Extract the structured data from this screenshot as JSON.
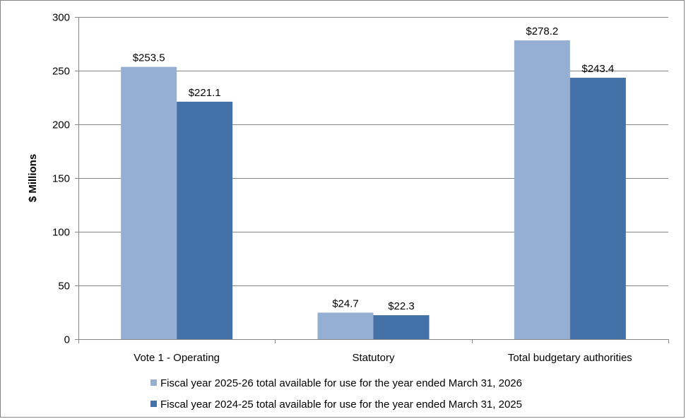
{
  "chart_data": {
    "type": "bar",
    "title": "",
    "xlabel": "",
    "ylabel": "$ Millions",
    "ylim": [
      0,
      300
    ],
    "yticks": [
      0,
      50,
      100,
      150,
      200,
      250,
      300
    ],
    "grid": true,
    "legend_position": "bottom",
    "categories": [
      "Vote 1 - Operating",
      "Statutory",
      "Total budgetary authorities"
    ],
    "series": [
      {
        "name": "Fiscal year 2025-26 total available for use for the year ended March 31, 2026",
        "color": "#95AED4",
        "values": [
          253.5,
          24.7,
          278.2
        ],
        "labels": [
          "$253.5",
          "$24.7",
          "$278.2"
        ]
      },
      {
        "name": "Fiscal year 2024-25 total available for use for the year ended March 31, 2025",
        "color": "#4472A8",
        "values": [
          221.1,
          22.3,
          243.4
        ],
        "labels": [
          "$221.1",
          "$22.3",
          "$243.4"
        ]
      }
    ]
  }
}
